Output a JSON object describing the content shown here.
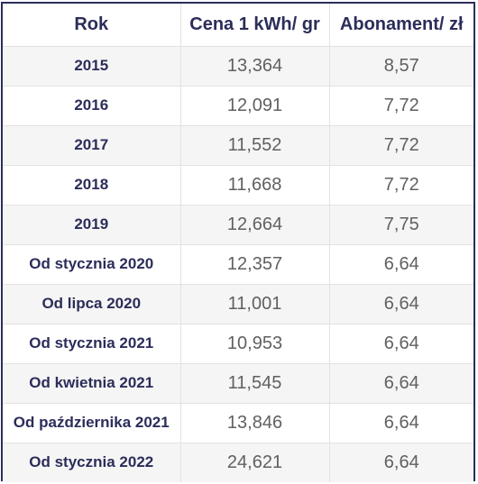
{
  "table": {
    "headers": [
      "Rok",
      "Cena 1 kWh/ gr",
      "Abonament/ zł"
    ],
    "rows": [
      [
        "2015",
        "13,364",
        "8,57"
      ],
      [
        "2016",
        "12,091",
        "7,72"
      ],
      [
        "2017",
        "11,552",
        "7,72"
      ],
      [
        "2018",
        "11,668",
        "7,72"
      ],
      [
        "2019",
        "12,664",
        "7,75"
      ],
      [
        "Od stycznia 2020",
        "12,357",
        "6,64"
      ],
      [
        "Od lipca 2020",
        "11,001",
        "6,64"
      ],
      [
        "Od stycznia 2021",
        "10,953",
        "6,64"
      ],
      [
        "Od kwietnia 2021",
        "11,545",
        "6,64"
      ],
      [
        "Od października 2021",
        "13,846",
        "6,64"
      ],
      [
        "Od stycznia 2022",
        "24,621",
        "6,64"
      ]
    ]
  },
  "colors": {
    "header_text": "#2b2d5a",
    "label_text": "#2b2d5a",
    "value_text": "#606060",
    "border": "#2b2d5a",
    "row_alt_bg": "#f5f5f5"
  }
}
